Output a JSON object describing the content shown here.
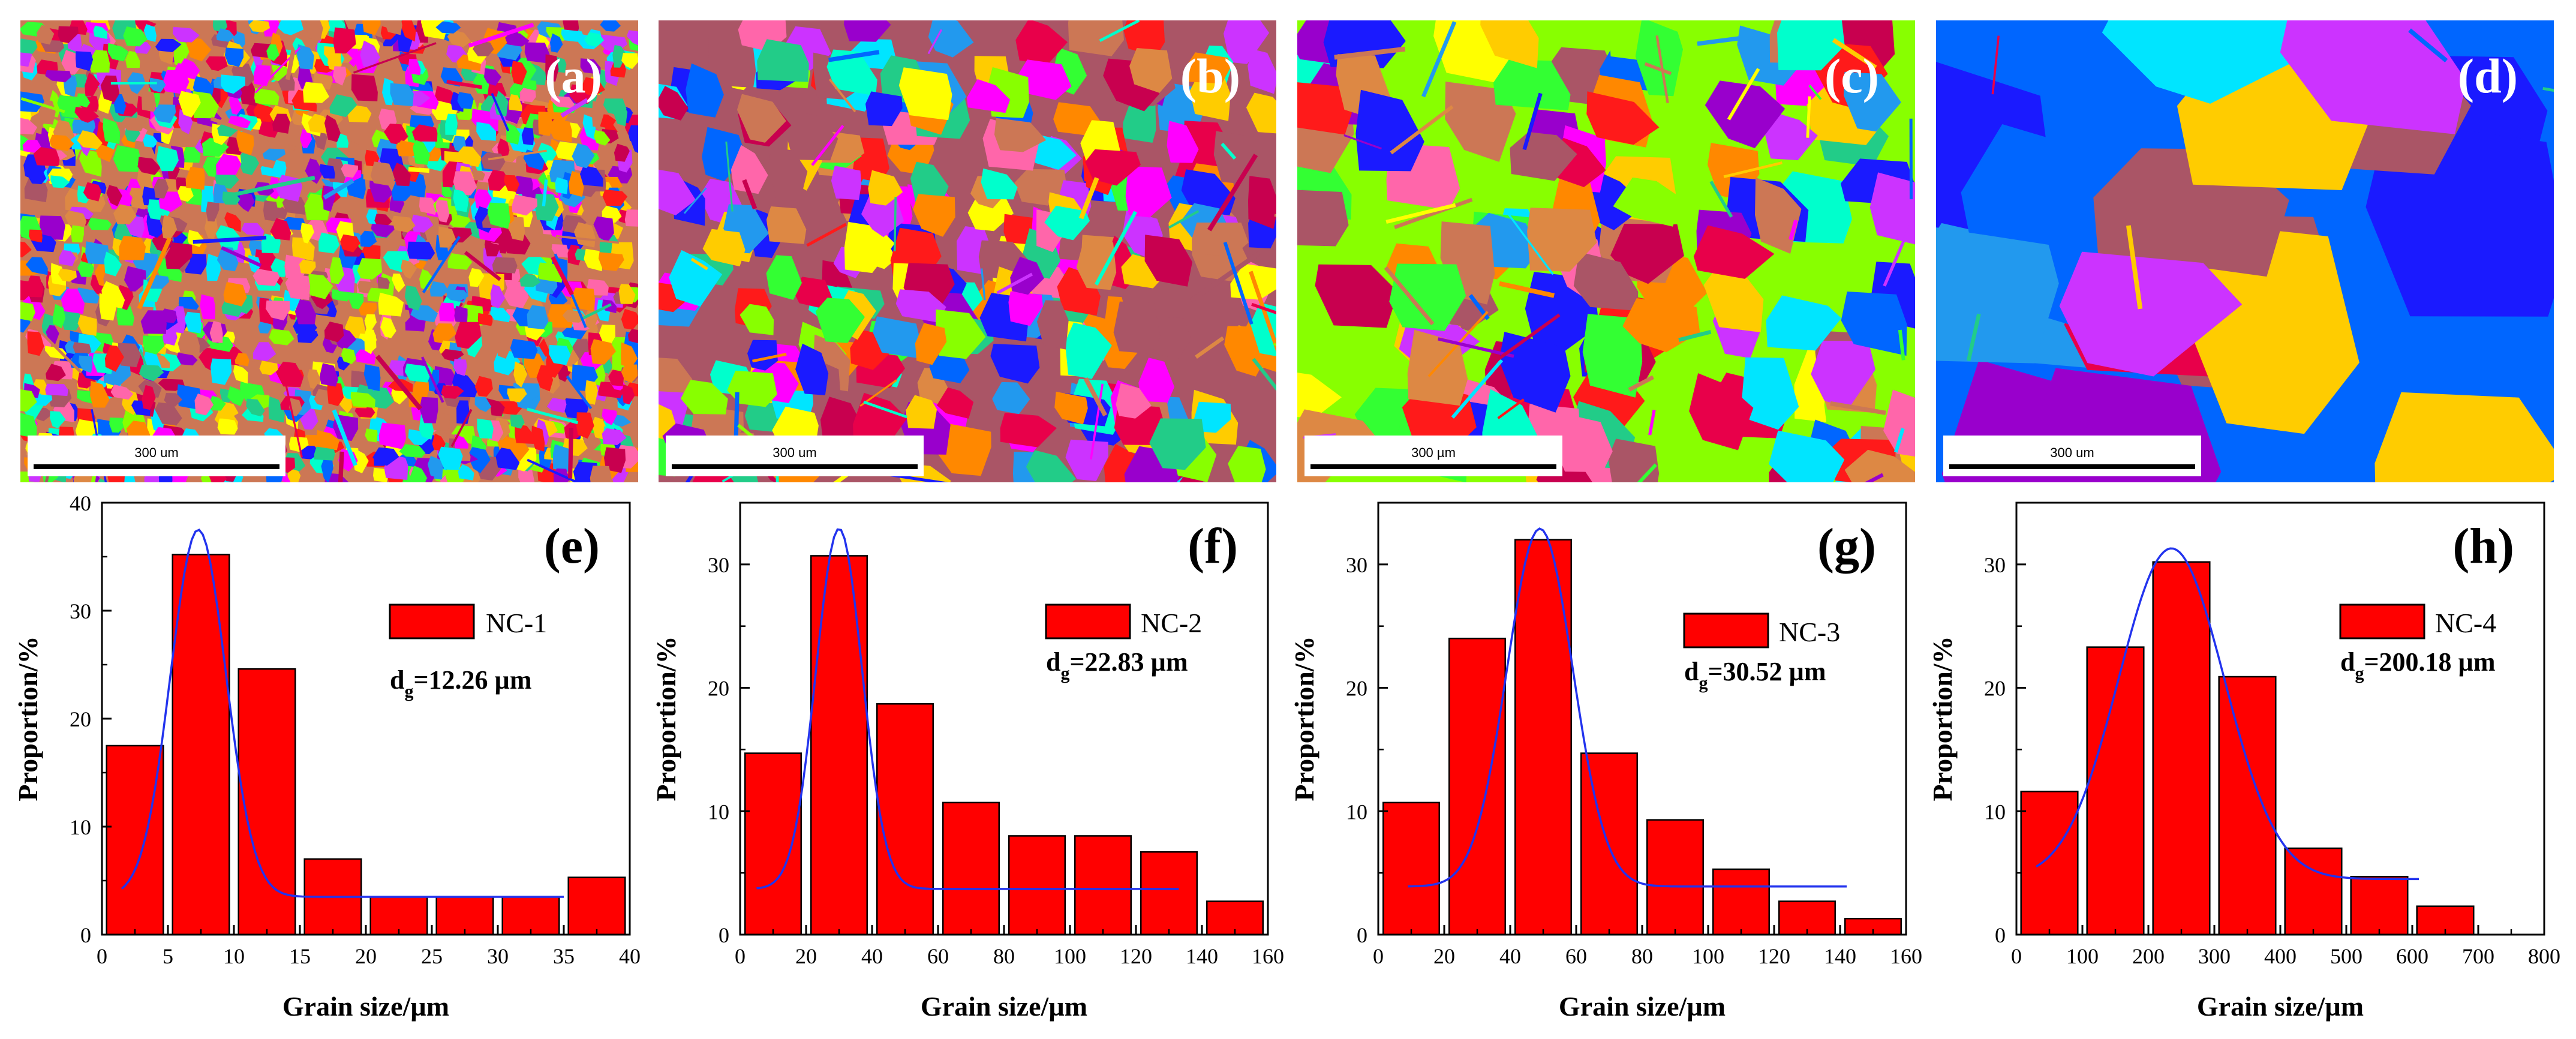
{
  "maps": [
    {
      "label": "(a)",
      "scale_text": "300 um",
      "seed": 11,
      "grain_size": "tiny"
    },
    {
      "label": "(b)",
      "scale_text": "300 um",
      "seed": 23,
      "grain_size": "small"
    },
    {
      "label": "(c)",
      "scale_text": "300 µm",
      "seed": 37,
      "grain_size": "medium"
    },
    {
      "label": "(d)",
      "scale_text": "300 um",
      "seed": 51,
      "grain_size": "large"
    }
  ],
  "map_palette": [
    "#ff1a1a",
    "#e8004a",
    "#c8004f",
    "#ff00ff",
    "#cc33ff",
    "#9900cc",
    "#1a1aff",
    "#0066ff",
    "#2299ee",
    "#00e5ff",
    "#00ffcc",
    "#22cc88",
    "#33ff33",
    "#88ff00",
    "#ffff00",
    "#ffcc00",
    "#ff8800",
    "#dd8844",
    "#cc7755",
    "#aa5566",
    "#ff66aa"
  ],
  "chart_data": [
    {
      "type": "bar",
      "label": "(e)",
      "legend": "NC-1",
      "dg_prefix": "d",
      "dg_sub": "g",
      "dg_value": "=12.26 µm",
      "xlabel": "Grain size/µm",
      "ylabel": "Proportion/%",
      "xlim": [
        0,
        40
      ],
      "ylim": [
        0,
        40
      ],
      "xticks": [
        0,
        5,
        10,
        15,
        20,
        25,
        30,
        35,
        40
      ],
      "yticks": [
        0,
        10,
        20,
        30,
        40
      ],
      "bin_width": 4.3,
      "x": [
        2.5,
        7.5,
        12.5,
        17.5,
        22.5,
        27.5,
        32.5,
        37.5
      ],
      "values": [
        17.5,
        35.2,
        24.6,
        7.0,
        3.5,
        3.5,
        3.5,
        5.3
      ],
      "fit": {
        "y0": 3.5,
        "A": 34,
        "xc": 7.3,
        "w": 4.2,
        "xmin": 1.5,
        "xmax": 35
      }
    },
    {
      "type": "bar",
      "label": "(f)",
      "legend": "NC-2",
      "dg_prefix": "d",
      "dg_sub": "g",
      "dg_value": "=22.83 µm",
      "xlabel": "Grain size/µm",
      "ylabel": "Proportion/%",
      "xlim": [
        0,
        160
      ],
      "ylim": [
        0,
        35
      ],
      "xticks": [
        0,
        20,
        40,
        60,
        80,
        100,
        120,
        140,
        160
      ],
      "yticks": [
        0,
        10,
        20,
        30
      ],
      "bin_width": 17,
      "x": [
        10,
        30,
        50,
        70,
        90,
        110,
        130,
        150
      ],
      "values": [
        14.7,
        30.7,
        18.7,
        10.7,
        8.0,
        8.0,
        6.7,
        2.7
      ],
      "fit": {
        "y0": 3.7,
        "A": 29.2,
        "xc": 30,
        "w": 14,
        "xmin": 5,
        "xmax": 133
      }
    },
    {
      "type": "bar",
      "label": "(g)",
      "legend": "NC-3",
      "dg_prefix": "d",
      "dg_sub": "g",
      "dg_value": "=30.52 µm",
      "xlabel": "Grain size/µm",
      "ylabel": "Proportion/%",
      "xlim": [
        0,
        160
      ],
      "ylim": [
        0,
        35
      ],
      "xticks": [
        0,
        20,
        40,
        60,
        80,
        100,
        120,
        140,
        160
      ],
      "yticks": [
        0,
        10,
        20,
        30
      ],
      "bin_width": 17,
      "x": [
        10,
        30,
        50,
        70,
        90,
        110,
        130,
        150
      ],
      "values": [
        10.7,
        24.0,
        32.0,
        14.7,
        9.3,
        5.3,
        2.7,
        1.3
      ],
      "fit": {
        "y0": 3.9,
        "A": 29,
        "xc": 49,
        "w": 20,
        "xmin": 9,
        "xmax": 142
      }
    },
    {
      "type": "bar",
      "label": "(h)",
      "legend": "NC-4",
      "dg_prefix": "d",
      "dg_sub": "g",
      "dg_value": "=200.18 µm",
      "xlabel": "Grain size/µm",
      "ylabel": "Proportion/%",
      "xlim": [
        0,
        800
      ],
      "ylim": [
        0,
        35
      ],
      "xticks": [
        0,
        100,
        200,
        300,
        400,
        500,
        600,
        700,
        800
      ],
      "yticks": [
        0,
        10,
        20,
        30
      ],
      "bin_width": 86,
      "x": [
        50,
        150,
        250,
        350,
        450,
        550,
        650
      ],
      "values": [
        11.6,
        23.3,
        30.2,
        20.9,
        7.0,
        4.7,
        2.3
      ],
      "fit": {
        "y0": 4.5,
        "A": 26.8,
        "xc": 235,
        "w": 160,
        "xmin": 30,
        "xmax": 610
      }
    }
  ]
}
